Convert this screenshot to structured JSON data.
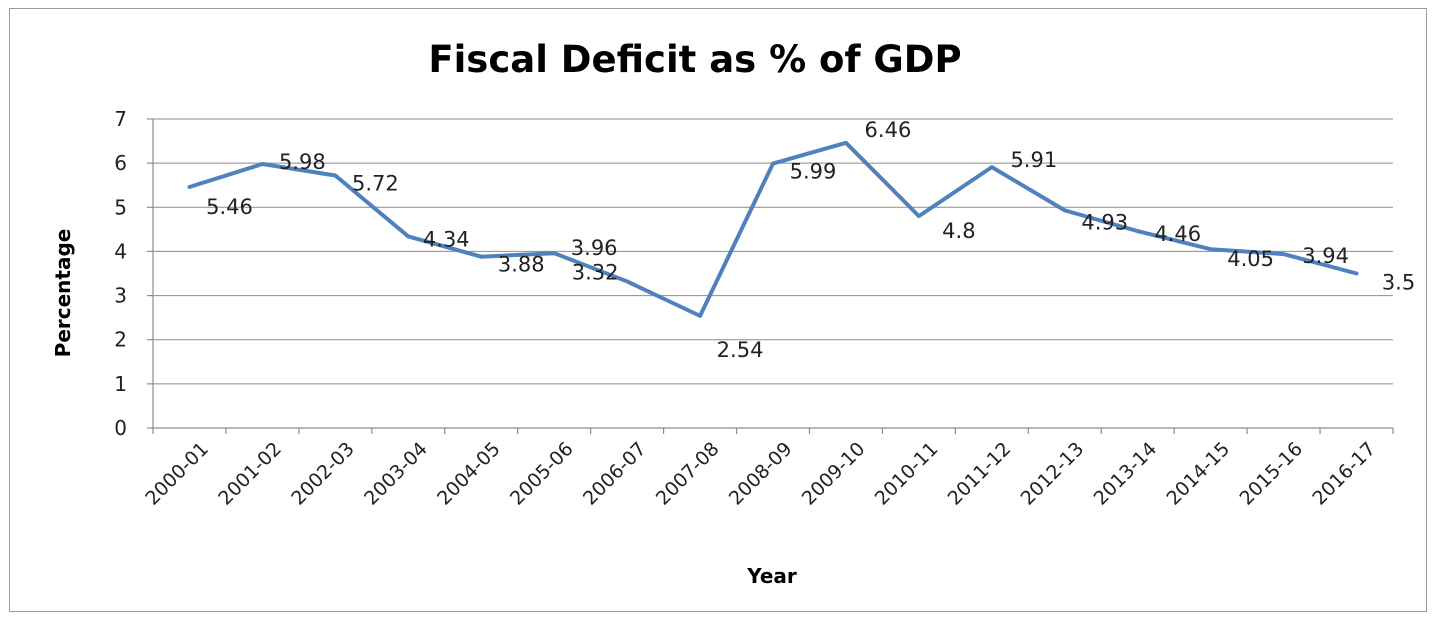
{
  "chart_data": {
    "type": "line",
    "title": "Fiscal Deficit as % of GDP",
    "xlabel": "Year",
    "ylabel": "Percentage",
    "ylim": [
      0,
      7
    ],
    "yticks": [
      0,
      1,
      2,
      3,
      4,
      5,
      6,
      7
    ],
    "grid": true,
    "legend": "none",
    "categories": [
      "2000-01",
      "2001-02",
      "2002-03",
      "2003-04",
      "2004-05",
      "2005-06",
      "2006-07",
      "2007-08",
      "2008-09",
      "2009-10",
      "2010-11",
      "2011-12",
      "2012-13",
      "2013-14",
      "2014-15",
      "2015-16",
      "2016-17"
    ],
    "series": [
      {
        "values": [
          5.46,
          5.98,
          5.72,
          4.34,
          3.88,
          3.96,
          3.32,
          2.54,
          5.99,
          6.46,
          4.8,
          5.91,
          4.93,
          4.46,
          4.05,
          3.94,
          3.5
        ],
        "color": "#4f81bd"
      }
    ]
  }
}
